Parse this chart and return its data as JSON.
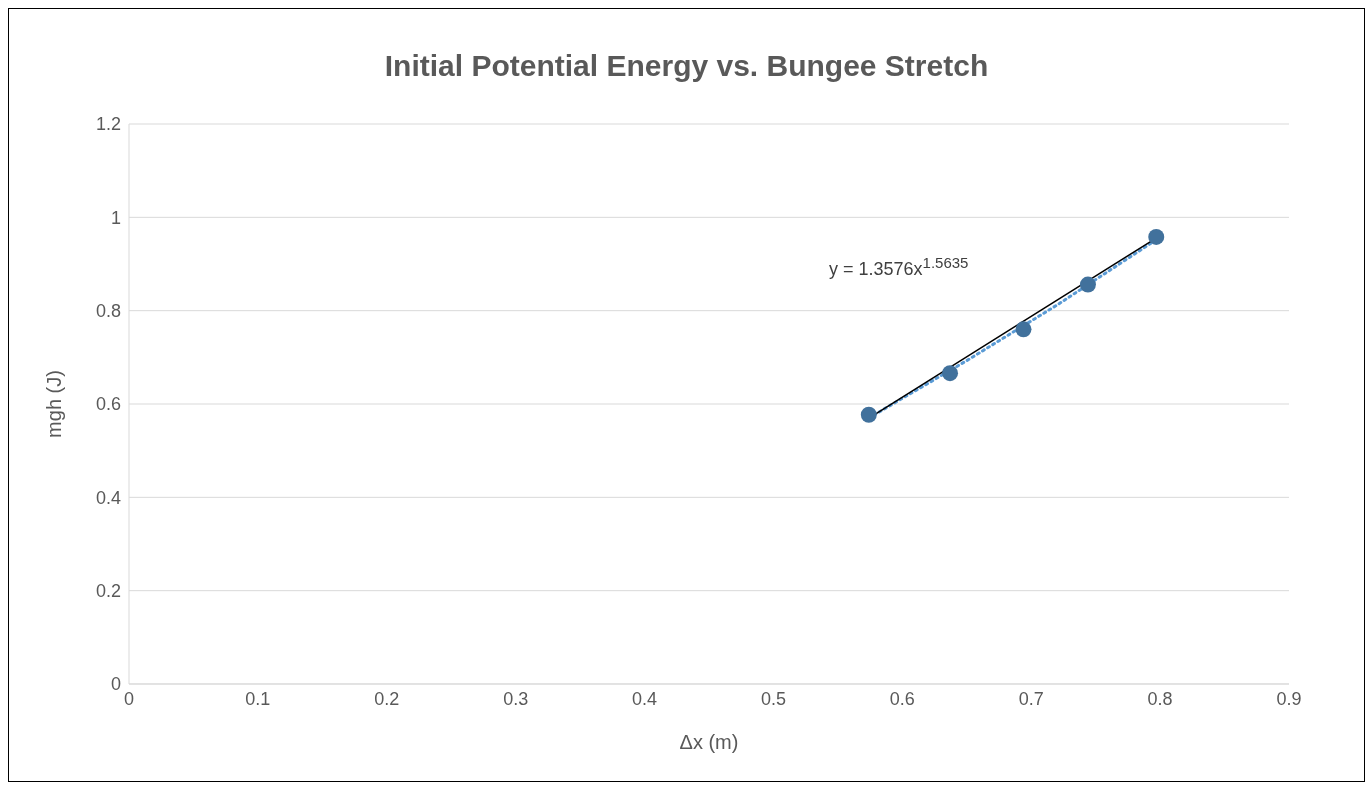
{
  "chart_data": {
    "type": "scatter",
    "title": "Initial Potential Energy vs. Bungee Stretch",
    "xlabel": "Δx (m)",
    "ylabel": "mgh (J)",
    "series": [
      {
        "color": "#41719c",
        "x": [
          0.574,
          0.637,
          0.694,
          0.744,
          0.797
        ],
        "values": [
          0.577,
          0.666,
          0.76,
          0.856,
          0.958
        ],
        "marker": "circle"
      },
      {
        "type": "line",
        "color": "#5b9bd5",
        "line_style": "dotted",
        "x": [
          0.574,
          0.65,
          0.72,
          0.797
        ],
        "values": [
          0.57,
          0.693,
          0.812,
          0.952
        ]
      },
      {
        "type": "line",
        "color": "#000000",
        "line_style": "solid",
        "x": [
          0.576,
          0.796
        ],
        "values": [
          0.573,
          0.954
        ]
      }
    ],
    "annotations": [
      "y = 1.3576x$^{1.5635}$"
    ],
    "xlim": [
      0,
      0.9
    ],
    "xticks": [
      0,
      0.1,
      0.2,
      0.3,
      0.4,
      0.5,
      0.6,
      0.7,
      0.8,
      0.9
    ],
    "ylim": [
      0,
      1.2
    ],
    "yticks": [
      0,
      0.2,
      0.4,
      0.6,
      0.8,
      1,
      1.2
    ],
    "grid": "y",
    "legend": false
  }
}
